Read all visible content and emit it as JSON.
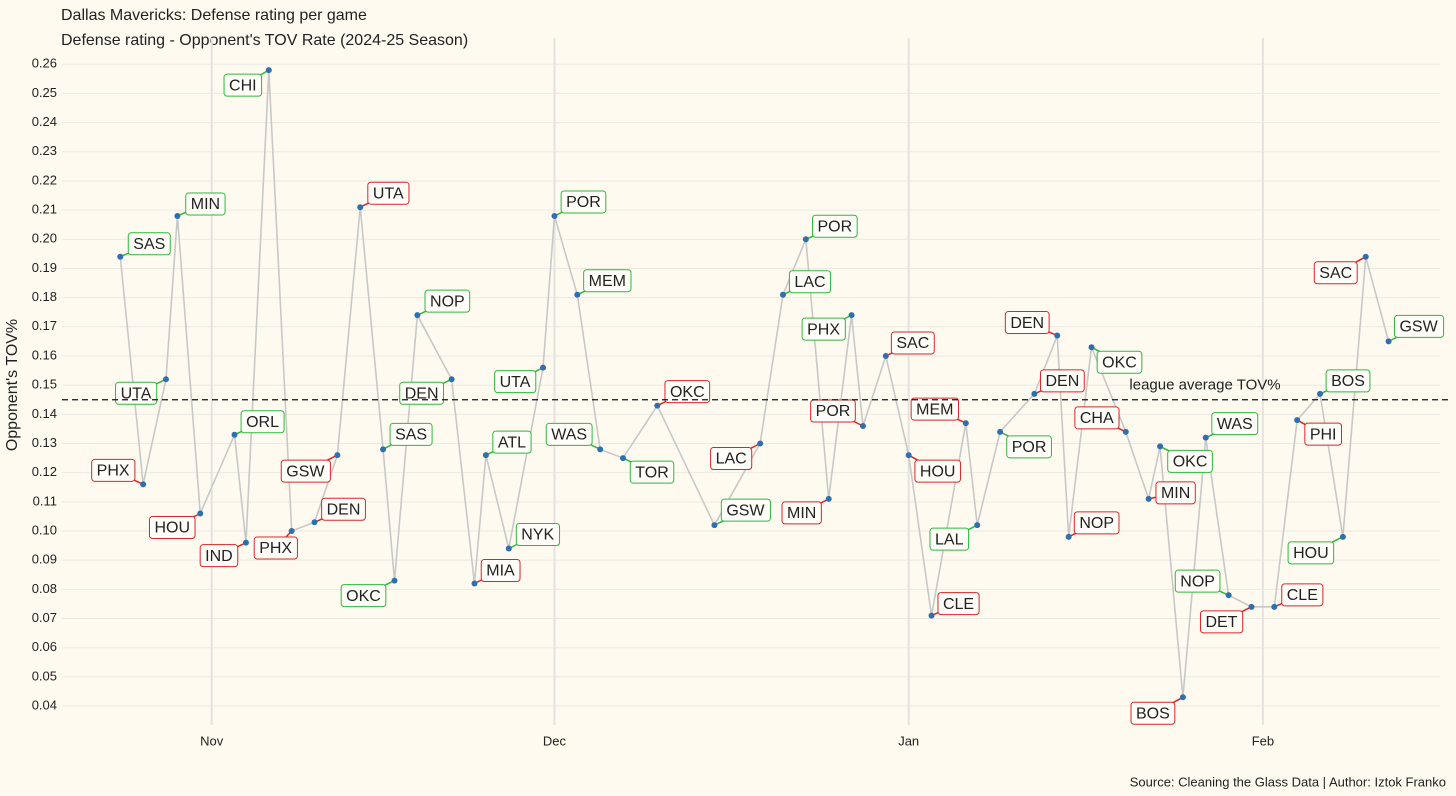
{
  "chart_data": {
    "type": "line",
    "title": "Dallas Mavericks: Defense rating per game",
    "subtitle": "Defense rating - Opponent's TOV Rate (2024-25 Season)",
    "y_label": "Opponent's TOV%",
    "caption": "Source: Cleaning the Glass Data | Author: Iztok Franko",
    "x": [
      -8,
      -6,
      -4,
      -3,
      -1,
      2,
      3,
      5,
      7,
      9,
      11,
      13,
      15,
      16,
      18,
      21,
      23,
      24,
      26,
      29,
      30,
      32,
      34,
      36,
      39,
      44,
      48,
      50,
      52,
      54,
      56,
      57,
      59,
      61,
      63,
      66,
      67,
      69,
      72,
      74,
      75,
      77,
      80,
      82,
      83,
      85,
      87,
      89,
      91,
      93,
      95,
      97,
      99,
      101,
      103
    ],
    "values": [
      0.194,
      0.116,
      0.152,
      0.208,
      0.106,
      0.133,
      0.096,
      0.258,
      0.1,
      0.103,
      0.126,
      0.211,
      0.128,
      0.083,
      0.174,
      0.152,
      0.082,
      0.126,
      0.094,
      0.156,
      0.208,
      0.181,
      0.128,
      0.125,
      0.143,
      0.102,
      0.13,
      0.181,
      0.2,
      0.111,
      0.174,
      0.136,
      0.16,
      0.126,
      0.071,
      0.137,
      0.102,
      0.134,
      0.147,
      0.167,
      0.098,
      0.163,
      0.134,
      0.111,
      0.129,
      0.043,
      0.132,
      0.078,
      0.074,
      0.074,
      0.138,
      0.147,
      0.098,
      0.194,
      0.165
    ],
    "labels": [
      "SAS",
      "PHX",
      "UTA",
      "MIN",
      "HOU",
      "ORL",
      "IND",
      "CHI",
      "PHX",
      "DEN",
      "GSW",
      "UTA",
      "SAS",
      "OKC",
      "NOP",
      "DEN",
      "MIA",
      "ATL",
      "NYK",
      "UTA",
      "POR",
      "MEM",
      "WAS",
      "TOR",
      "OKC",
      "GSW",
      "LAC",
      "LAC",
      "POR",
      "MIN",
      "PHX",
      "POR",
      "SAC",
      "HOU",
      "CLE",
      "MEM",
      "LAL",
      "POR",
      "DEN",
      "DEN",
      "NOP",
      "OKC",
      "CHA",
      "MIN",
      "OKC",
      "BOS",
      "WAS",
      "NOP",
      "DET",
      "CLE",
      "PHI",
      "BOS",
      "HOU",
      "SAC",
      "GSW"
    ],
    "label_colors": [
      "#2db83d",
      "#d62728",
      "#2db83d",
      "#2db83d",
      "#d62728",
      "#2db83d",
      "#d62728",
      "#2db83d",
      "#d62728",
      "#d62728",
      "#d62728",
      "#d62728",
      "#2db83d",
      "#2db83d",
      "#2db83d",
      "#2db83d",
      "#d62728",
      "#2db83d",
      "#2db83d",
      "#2db83d",
      "#2db83d",
      "#2db83d",
      "#2db83d",
      "#2db83d",
      "#d62728",
      "#2db83d",
      "#d62728",
      "#2db83d",
      "#2db83d",
      "#d62728",
      "#2db83d",
      "#d62728",
      "#d62728",
      "#d62728",
      "#d62728",
      "#d62728",
      "#2db83d",
      "#2db83d",
      "#d62728",
      "#d62728",
      "#d62728",
      "#2db83d",
      "#d62728",
      "#d62728",
      "#2db83d",
      "#d62728",
      "#2db83d",
      "#2db83d",
      "#d62728",
      "#d62728",
      "#d62728",
      "#2db83d",
      "#2db83d",
      "#d62728",
      "#2db83d"
    ],
    "color": "#2f6fae",
    "line_color": "#c8c8c8",
    "xlim": [
      -13.1,
      107.5
    ],
    "xticks": [
      {
        "value": 0,
        "label": "Nov"
      },
      {
        "value": 30,
        "label": "Dec"
      },
      {
        "value": 61,
        "label": "Jan"
      },
      {
        "value": 92,
        "label": "Feb"
      }
    ],
    "ylim": [
      0.0335,
      0.269
    ],
    "yticks": [
      0.04,
      0.05,
      0.06,
      0.07,
      0.08,
      0.09,
      {
        "value": 0.1,
        "label": "0.10"
      },
      0.11,
      0.12,
      0.13,
      0.14,
      0.15,
      0.16,
      0.17,
      0.18,
      0.19,
      {
        "value": 0.2,
        "label": "0.20"
      },
      0.21,
      0.22,
      0.23,
      0.24,
      0.25,
      0.26
    ],
    "hline": {
      "value": 0.145,
      "label": "league average TOV%"
    },
    "grid": true
  }
}
